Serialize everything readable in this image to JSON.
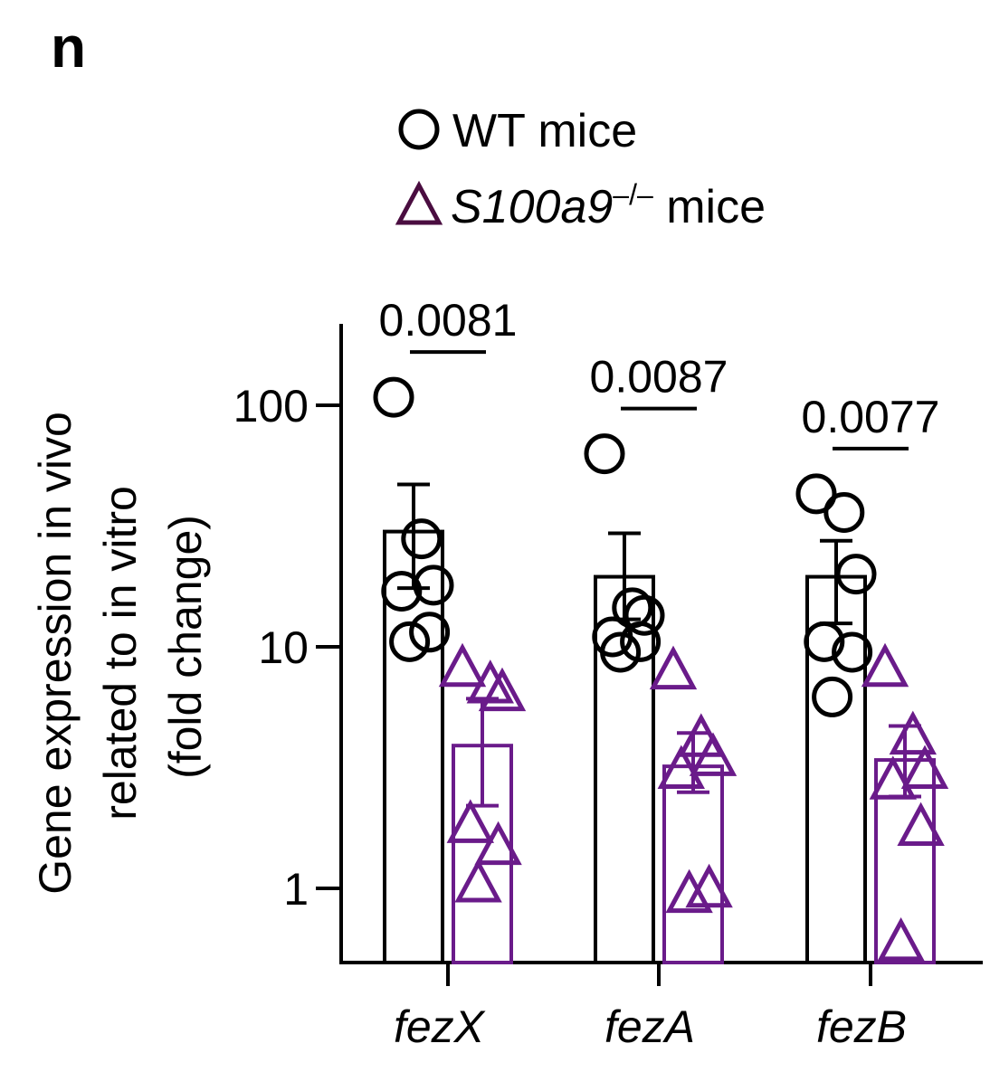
{
  "panel_label": "n",
  "colors": {
    "wt": "#000000",
    "ko": "#6a1b8a",
    "ko_legend": "#4a0d40"
  },
  "legend": {
    "wt_label": "WT mice",
    "ko_label_italic": "S100a9",
    "ko_label_sup": "–/–",
    "ko_label_suffix": " mice"
  },
  "chart_data": {
    "type": "bar",
    "scale": "log",
    "categories": [
      "fezX",
      "fezA",
      "fezB"
    ],
    "ylabel_lines": [
      "Gene expression in vivo",
      "related to in vitro",
      "(fold change)"
    ],
    "yticks": [
      1,
      10,
      100
    ],
    "ytick_labels": [
      "1",
      "10",
      "100"
    ],
    "ylim": [
      0.5,
      210
    ],
    "series": [
      {
        "name": "WT mice",
        "marker": "circle",
        "means": [
          30,
          19.5,
          19.5
        ],
        "sem_upper": [
          47,
          29.5,
          27.5
        ],
        "sem_lower": [
          17.5,
          13,
          12.5
        ],
        "points": [
          [
            108,
            28,
            18,
            17,
            11.5,
            10.5
          ],
          [
            63,
            14.5,
            13.5,
            11,
            10.5,
            9.5
          ],
          [
            43,
            36,
            20,
            10.5,
            9.5,
            6.2
          ]
        ]
      },
      {
        "name": "S100a9–/– mice",
        "marker": "triangle",
        "means": [
          3.9,
          3.2,
          3.4
        ],
        "sem_upper": [
          6.1,
          4.4,
          4.7
        ],
        "sem_lower": [
          2.2,
          2.5,
          2.4
        ],
        "points": [
          [
            8.2,
            7.0,
            6.5,
            1.85,
            1.5,
            1.05
          ],
          [
            8.0,
            4.2,
            3.5,
            3.1,
            1.0,
            0.95
          ],
          [
            8.2,
            4.3,
            3.1,
            2.8,
            1.8,
            0.6
          ]
        ]
      }
    ],
    "p_values": [
      "0.0081",
      "0.0087",
      "0.0077"
    ]
  }
}
